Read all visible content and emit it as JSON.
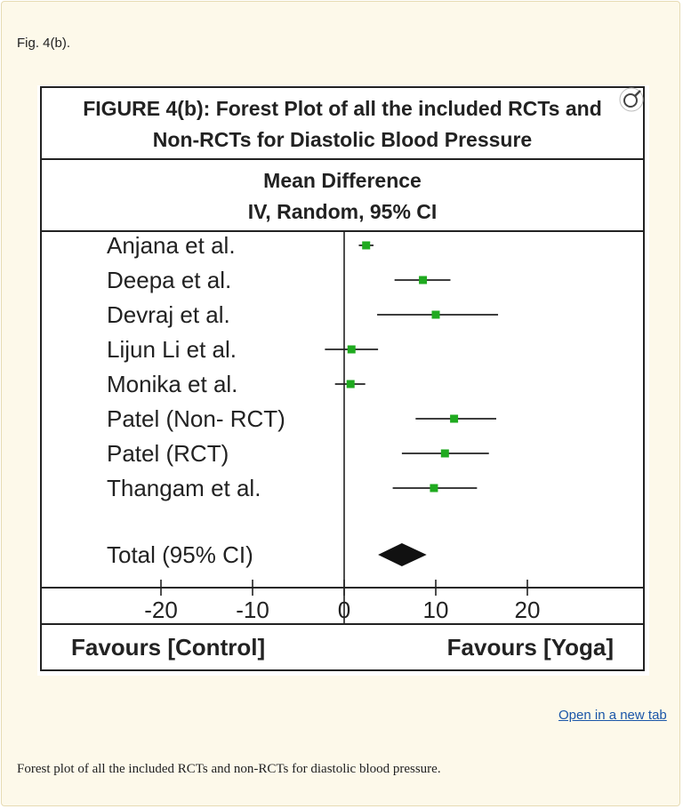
{
  "fig_label": "Fig. 4(b).",
  "open_link": "Open in a new tab",
  "caption": "Forest plot of all the included RCTs and non-RCTs for diastolic blood pressure.",
  "icons": {
    "zoom": "magnifier-icon"
  },
  "colors": {
    "marker": "#1faa1f",
    "panel_bg": "#fdf9ea",
    "link": "#1a56a8"
  },
  "chart_data": {
    "type": "forest",
    "title_line1": "FIGURE 4(b): Forest Plot of all the included RCTs and",
    "title_line2": "Non-RCTs for Diastolic Blood Pressure",
    "header_line1": "Mean Difference",
    "header_line2": "IV, Random, 95% CI",
    "xlim": [
      -20,
      30
    ],
    "ticks": [
      -20,
      -10,
      0,
      10,
      20
    ],
    "tick_labels": [
      "-20",
      "-10",
      "0",
      "10",
      "20"
    ],
    "studies": [
      {
        "name": "Anjana et al.",
        "md": 2.4,
        "lo": 1.6,
        "hi": 3.2
      },
      {
        "name": "Deepa et al.",
        "md": 8.6,
        "lo": 5.5,
        "hi": 11.6
      },
      {
        "name": "Devraj et al.",
        "md": 10.0,
        "lo": 3.6,
        "hi": 16.8
      },
      {
        "name": "Lijun Li et al.",
        "md": 0.8,
        "lo": -2.1,
        "hi": 3.7
      },
      {
        "name": "Monika et al.",
        "md": 0.7,
        "lo": -1.0,
        "hi": 2.3
      },
      {
        "name": "Patel (Non- RCT)",
        "md": 12.0,
        "lo": 7.8,
        "hi": 16.6
      },
      {
        "name": "Patel (RCT)",
        "md": 11.0,
        "lo": 6.3,
        "hi": 15.8
      },
      {
        "name": "Thangam et al.",
        "md": 9.8,
        "lo": 5.3,
        "hi": 14.5
      }
    ],
    "total": {
      "name": "Total (95% CI)",
      "md": 6.3,
      "lo": 3.7,
      "hi": 9.0
    },
    "favours_left": "Favours [Control]",
    "favours_right": "Favours [Yoga]"
  }
}
